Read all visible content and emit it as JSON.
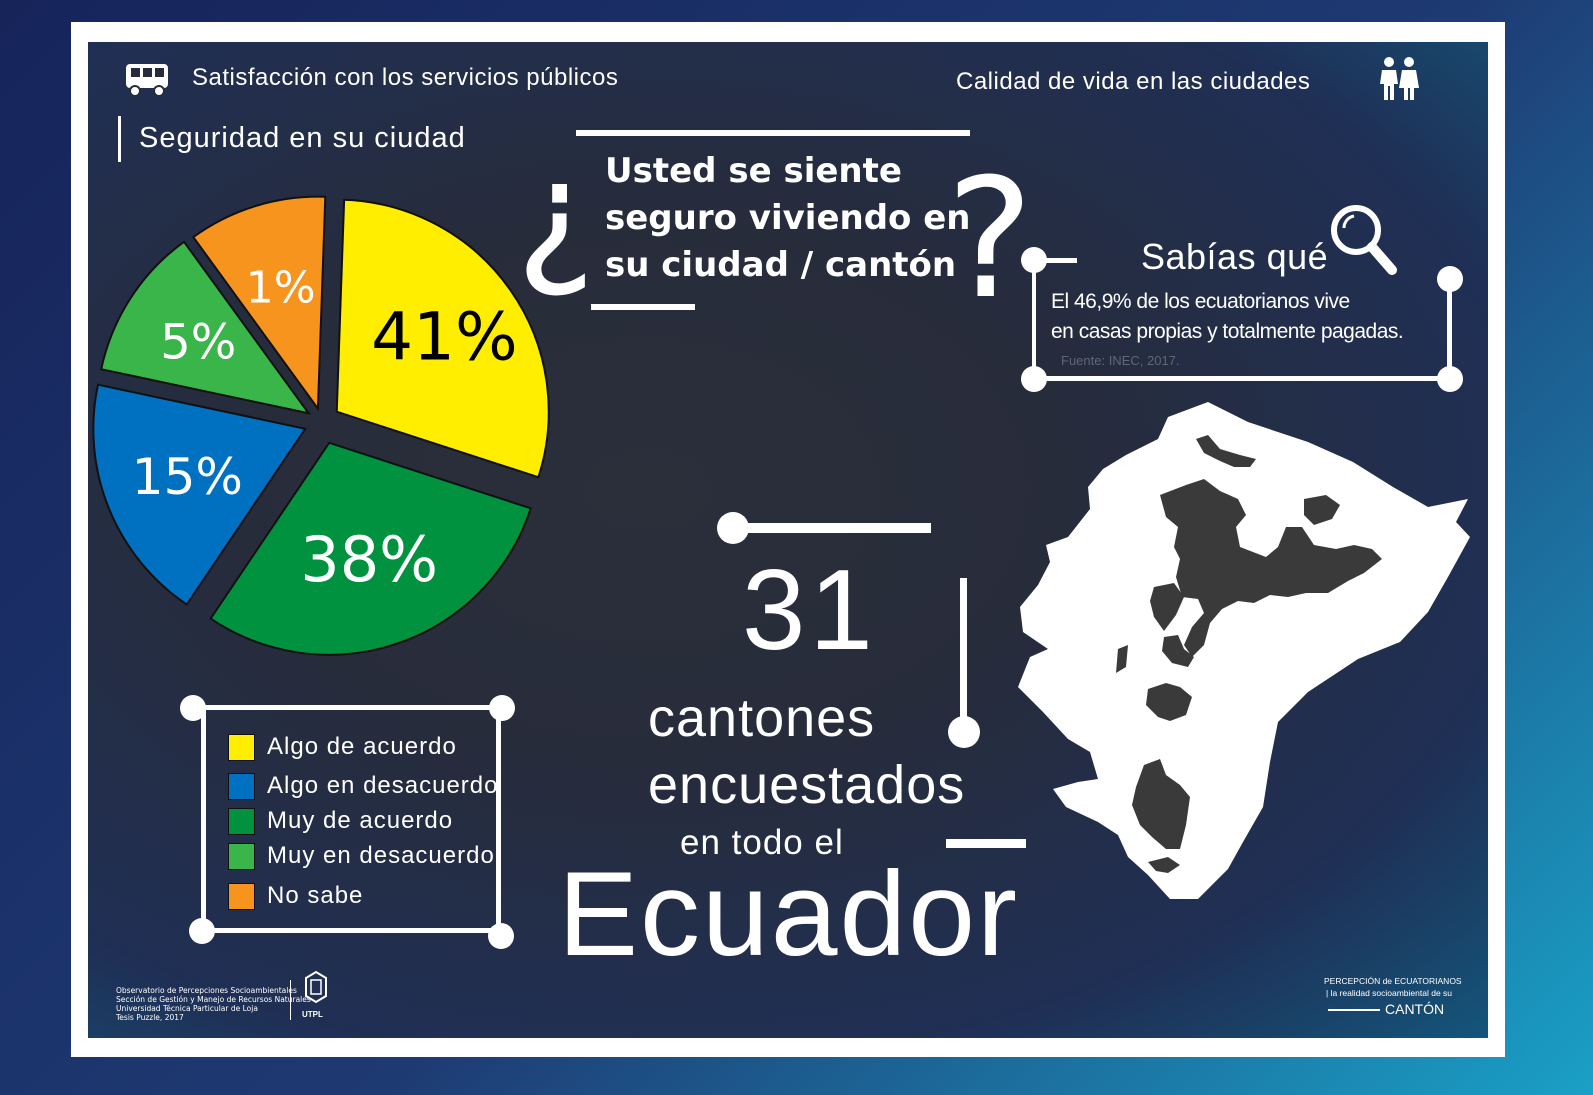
{
  "header": {
    "left_title": "Satisfacción con los servicios públicos",
    "right_title": "Calidad de vida en las ciudades",
    "left_icon": "bus-icon",
    "right_icon": "couple-icon"
  },
  "section_title": "Seguridad en su ciudad",
  "question": {
    "open_mark": "¿",
    "close_mark": "?",
    "line1": "Usted se siente",
    "line2": "seguro viviendo en",
    "line3": "su ciudad / cantón"
  },
  "fact": {
    "title": "Sabías qué",
    "line1": "El 46,9% de los ecuatorianos vive",
    "line2": "en casas propias y totalmente pagadas.",
    "source": "Fuente: INEC, 2017.",
    "icon": "magnifier-icon"
  },
  "stats": {
    "number": "31",
    "line1": "cantones",
    "line2": "encuestados",
    "line3": "en todo el",
    "country": "Ecuador"
  },
  "chart_data": {
    "type": "pie",
    "title": "Seguridad en su ciudad",
    "slices": [
      {
        "label": "Algo de acuerdo",
        "value": 41,
        "display": "41%",
        "color": "#ffee00",
        "text_color": "#000000"
      },
      {
        "label": "Muy de acuerdo",
        "value": 38,
        "display": "38%",
        "color": "#00923f",
        "text_color": "#ffffff"
      },
      {
        "label": "Algo en desacuerdo",
        "value": 15,
        "display": "15%",
        "color": "#0070c0",
        "text_color": "#ffffff"
      },
      {
        "label": "Muy en desacuerdo",
        "value": 5,
        "display": "5%",
        "color": "#39b54a",
        "text_color": "#ffffff"
      },
      {
        "label": "No sabe",
        "value": 1,
        "display": "1%",
        "color": "#f7941d",
        "text_color": "#ffffff"
      }
    ],
    "legend_placement": "bottom-left"
  },
  "legend": [
    {
      "label": "Algo de acuerdo",
      "color": "#ffee00"
    },
    {
      "label": "Algo en desacuerdo",
      "color": "#0070c0"
    },
    {
      "label": "Muy de acuerdo",
      "color": "#00923f"
    },
    {
      "label": "Muy en desacuerdo",
      "color": "#39b54a"
    },
    {
      "label": "No sabe",
      "color": "#f7941d"
    }
  ],
  "footer": {
    "credits": [
      "Observatorio de Percepciones Socioambientales",
      "Sección de Gestión y Manejo de Recursos Naturales",
      "Universidad Técnica Particular de Loja",
      "Tesis Puzzle, 2017"
    ],
    "logo_text": "UTPL",
    "brand_line1": "PERCEPCIÓN de ECUATORIANOS",
    "brand_line2": "| la realidad socioambiental de su",
    "brand_line3": "CANTÓN"
  }
}
